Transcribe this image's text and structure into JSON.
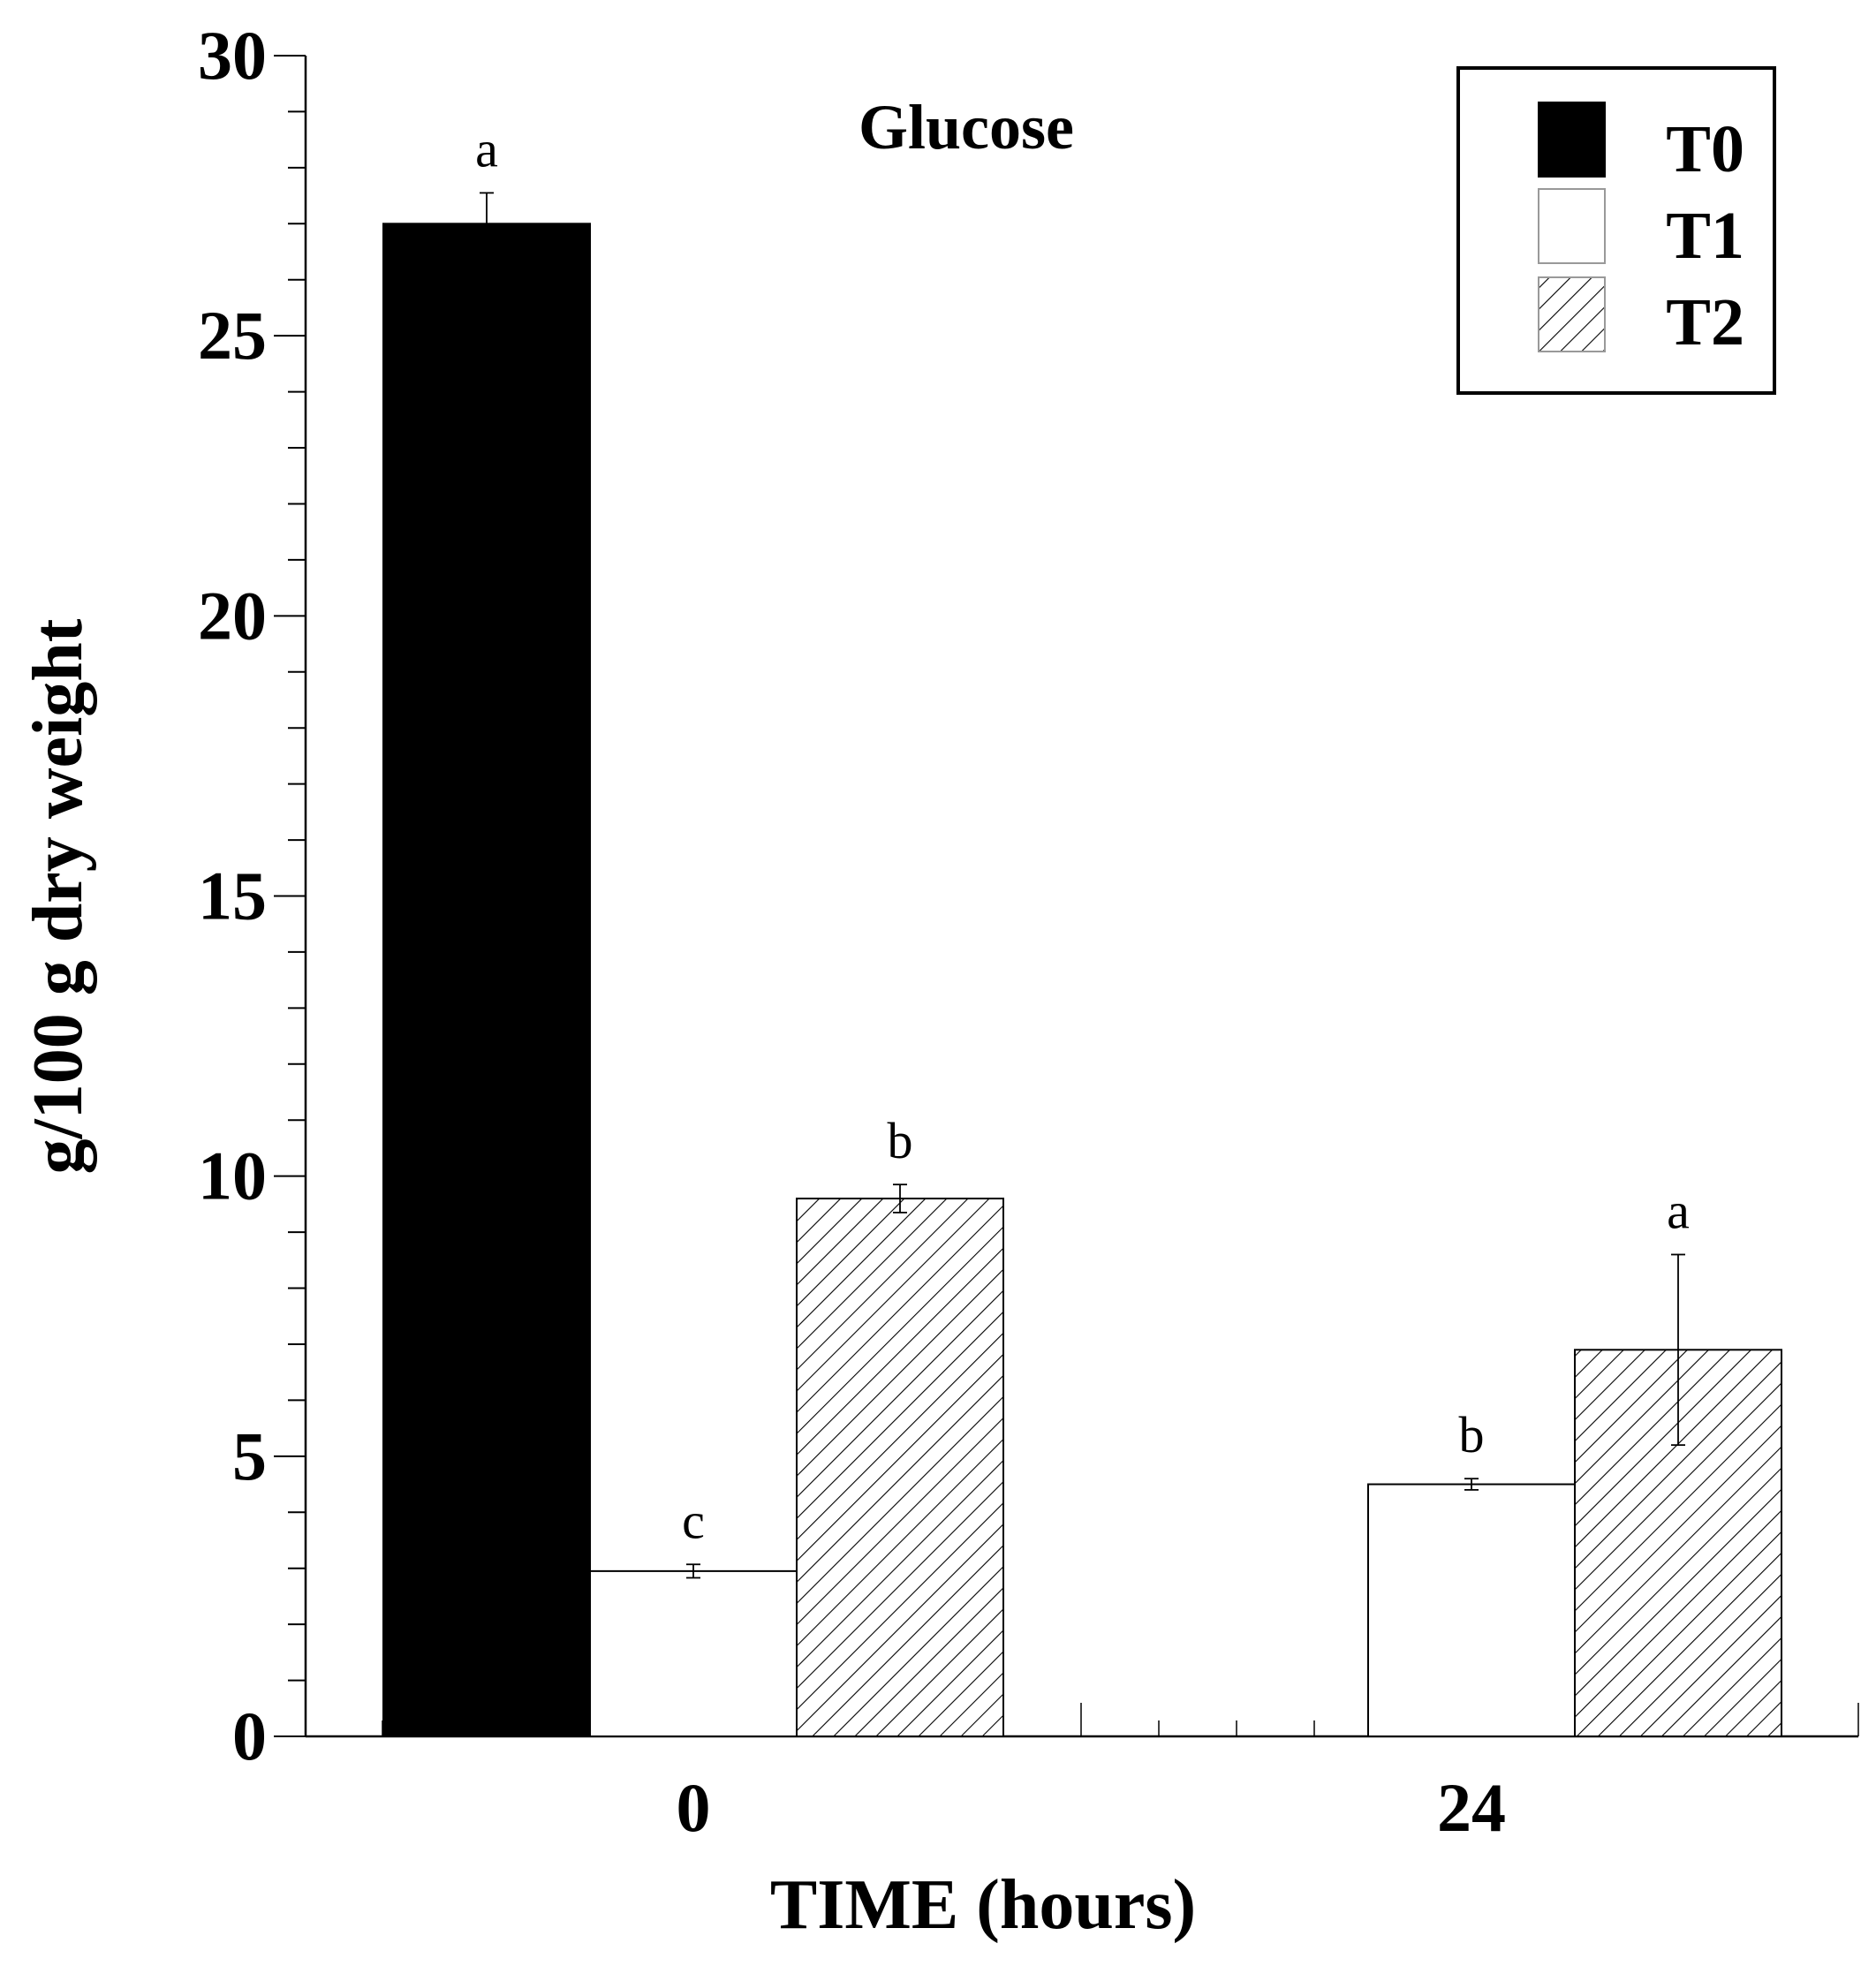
{
  "chart_data": {
    "type": "bar",
    "title": "Glucose",
    "xlabel": "TIME (hours)",
    "ylabel": "g/100 g dry weight",
    "ylim": [
      0,
      30
    ],
    "yticks": [
      0,
      5,
      10,
      15,
      20,
      25,
      30
    ],
    "categories": [
      "0",
      "24"
    ],
    "series": [
      {
        "name": "T0",
        "fill": "solid",
        "color": "#000000",
        "values": [
          27.0,
          null
        ],
        "errors": [
          0.55,
          null
        ],
        "significance": [
          "a",
          null
        ]
      },
      {
        "name": "T1",
        "fill": "none",
        "color": "#ffffff",
        "values": [
          2.95,
          4.5
        ],
        "errors": [
          0.12,
          0.1
        ],
        "significance": [
          "c",
          "b"
        ]
      },
      {
        "name": "T2",
        "fill": "hatched",
        "color": "#ffffff",
        "values": [
          9.6,
          6.9
        ],
        "errors": [
          0.25,
          1.7
        ],
        "significance": [
          "b",
          "a"
        ]
      }
    ],
    "legend_position": "top-right",
    "grid": false
  }
}
